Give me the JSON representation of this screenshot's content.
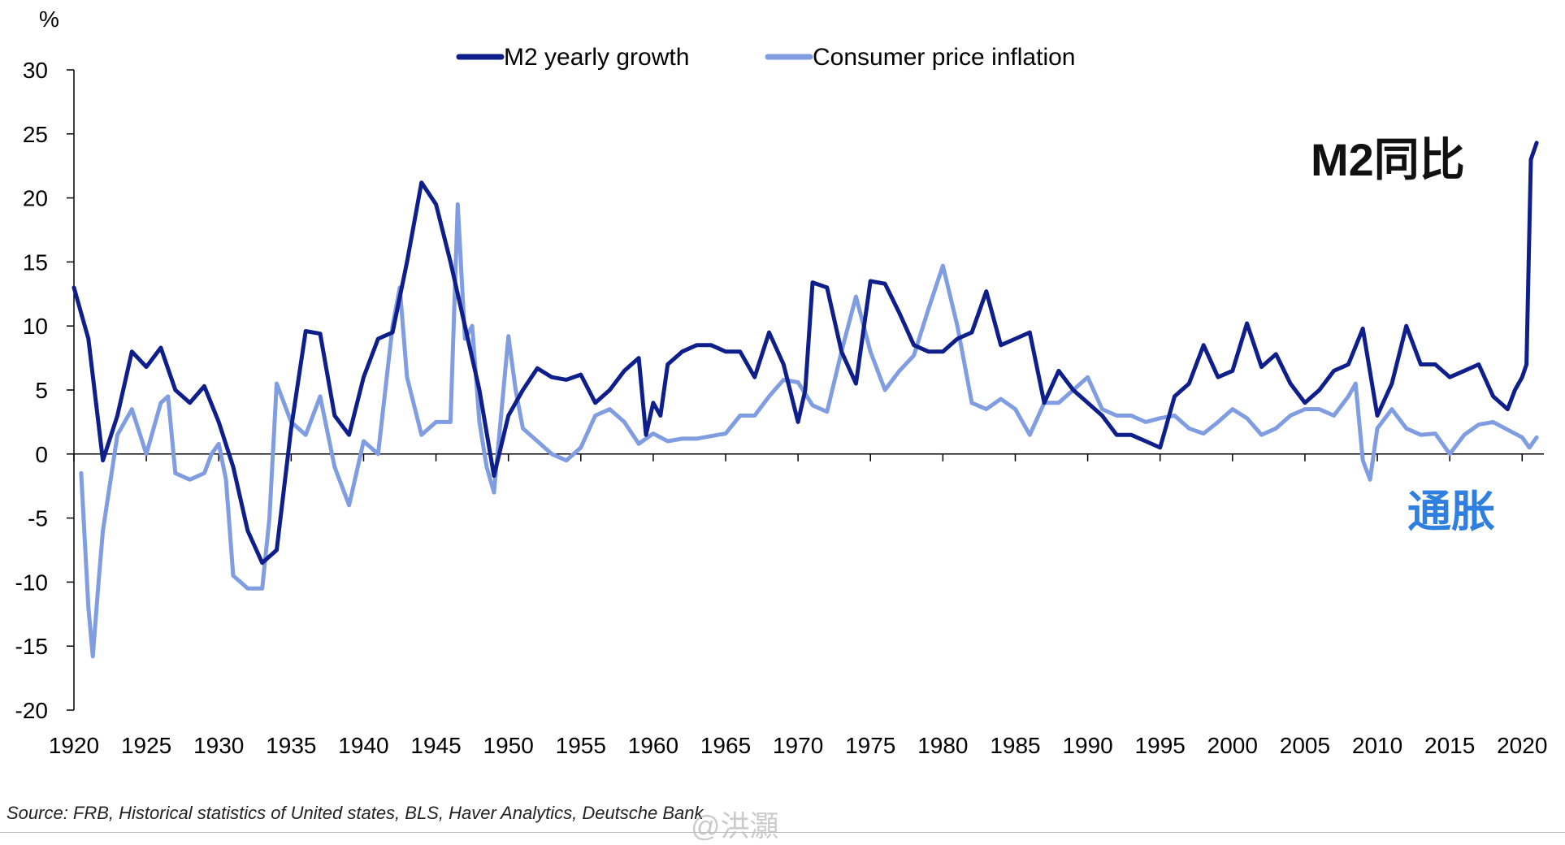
{
  "colors": {
    "m2": "#0e1f8c",
    "cpi": "#7f9de0",
    "m2_annotation": "#111111",
    "cpi_annotation": "#2f7fe0"
  },
  "annotations": {
    "m2": "M2同比",
    "cpi": "通胀"
  },
  "source": "Source: FRB, Historical statistics of United states,  BLS, Haver Analytics, Deutsche Bank",
  "watermark": "@洪灝",
  "chart_data": {
    "type": "line",
    "title": "",
    "ylabel": "%",
    "xlabel": "",
    "ylim": [
      -20,
      30
    ],
    "xlim": [
      1920,
      2021.5
    ],
    "yticks": [
      -20,
      -15,
      -10,
      -5,
      0,
      5,
      10,
      15,
      20,
      25,
      30
    ],
    "xticks": [
      1920,
      1925,
      1930,
      1935,
      1940,
      1945,
      1950,
      1955,
      1960,
      1965,
      1970,
      1975,
      1980,
      1985,
      1990,
      1995,
      2000,
      2005,
      2010,
      2015,
      2020
    ],
    "grid": false,
    "legend": "top-center",
    "series": [
      {
        "name": "M2 yearly growth",
        "x": [
          1920,
          1921,
          1922,
          1923,
          1924,
          1925,
          1926,
          1927,
          1928,
          1929,
          1930,
          1931,
          1932,
          1933,
          1934,
          1935,
          1936,
          1937,
          1938,
          1939,
          1940,
          1941,
          1942,
          1943,
          1944,
          1945,
          1946,
          1947,
          1948,
          1949,
          1950,
          1951,
          1952,
          1953,
          1954,
          1955,
          1956,
          1957,
          1958,
          1959,
          1959.5,
          1960,
          1960.5,
          1961,
          1962,
          1963,
          1964,
          1965,
          1966,
          1967,
          1968,
          1969,
          1970,
          1970.5,
          1971,
          1972,
          1973,
          1974,
          1975,
          1976,
          1977,
          1978,
          1979,
          1980,
          1981,
          1982,
          1983,
          1984,
          1985,
          1986,
          1987,
          1988,
          1989,
          1990,
          1991,
          1992,
          1993,
          1994,
          1995,
          1996,
          1997,
          1998,
          1999,
          2000,
          2001,
          2002,
          2003,
          2004,
          2005,
          2006,
          2007,
          2008,
          2009,
          2010,
          2011,
          2012,
          2013,
          2014,
          2015,
          2016,
          2017,
          2018,
          2019,
          2019.5,
          2020,
          2020.3,
          2020.6,
          2021
        ],
        "values": [
          13,
          9,
          -0.5,
          3,
          8,
          6.8,
          8.3,
          5,
          4,
          5.3,
          2.5,
          -1,
          -6,
          -8.5,
          -7.5,
          2,
          9.6,
          9.4,
          3,
          1.5,
          6,
          9,
          9.5,
          15,
          21.2,
          19.5,
          15,
          10,
          5,
          -1.7,
          3,
          5,
          6.7,
          6,
          5.8,
          6.2,
          4,
          5,
          6.5,
          7.5,
          1.5,
          4,
          3,
          7,
          8,
          8.5,
          8.5,
          8,
          8,
          6,
          9.5,
          7,
          2.5,
          5,
          13.4,
          13,
          8,
          5.5,
          13.5,
          13.3,
          11,
          8.5,
          8,
          8,
          9,
          9.5,
          12.7,
          8.5,
          9,
          9.5,
          4,
          6.5,
          5,
          4,
          3,
          1.5,
          1.5,
          1,
          0.5,
          4.5,
          5.5,
          8.5,
          6,
          6.5,
          10.2,
          6.8,
          7.8,
          5.5,
          4,
          5,
          6.5,
          7,
          9.8,
          3,
          5.5,
          10,
          7,
          7,
          6,
          6.5,
          7,
          4.5,
          3.5,
          5,
          6,
          7,
          23,
          24.3
        ]
      },
      {
        "name": "Consumer price inflation",
        "x": [
          1920.5,
          1921,
          1921.3,
          1921.7,
          1922,
          1923,
          1924,
          1925,
          1926,
          1926.5,
          1927,
          1928,
          1929,
          1929.5,
          1930,
          1930.5,
          1931,
          1932,
          1933,
          1933.5,
          1934,
          1935,
          1936,
          1937,
          1938,
          1939,
          1940,
          1941,
          1942,
          1942.5,
          1943,
          1944,
          1945,
          1946,
          1946.5,
          1947,
          1947.5,
          1948,
          1948.5,
          1949,
          1950,
          1950.5,
          1951,
          1952,
          1953,
          1954,
          1955,
          1956,
          1957,
          1958,
          1959,
          1960,
          1961,
          1962,
          1963,
          1964,
          1965,
          1966,
          1967,
          1968,
          1969,
          1970,
          1971,
          1972,
          1973,
          1974,
          1975,
          1976,
          1977,
          1978,
          1979,
          1980,
          1981,
          1982,
          1983,
          1984,
          1985,
          1986,
          1987,
          1988,
          1989,
          1990,
          1991,
          1992,
          1993,
          1994,
          1995,
          1996,
          1997,
          1998,
          1999,
          2000,
          2001,
          2002,
          2003,
          2004,
          2005,
          2006,
          2007,
          2008,
          2008.5,
          2009,
          2009.5,
          2010,
          2011,
          2012,
          2013,
          2014,
          2015,
          2016,
          2017,
          2018,
          2019,
          2020,
          2020.5,
          2021
        ],
        "values": [
          -1.5,
          -12,
          -15.8,
          -10,
          -6,
          1.5,
          3.5,
          0,
          4,
          4.5,
          -1.5,
          -2,
          -1.5,
          0,
          0.8,
          -2,
          -9.5,
          -10.5,
          -10.5,
          -5,
          5.5,
          2.5,
          1.5,
          4.5,
          -1,
          -4,
          1,
          0,
          10,
          13,
          6,
          1.5,
          2.5,
          2.5,
          19.5,
          9,
          10,
          2.5,
          -1,
          -3,
          9.2,
          5,
          2,
          1,
          0,
          -0.5,
          0.5,
          3,
          3.5,
          2.5,
          0.8,
          1.6,
          1,
          1.2,
          1.2,
          1.4,
          1.6,
          3,
          3,
          4.5,
          5.8,
          5.6,
          3.8,
          3.3,
          8,
          12.3,
          8,
          5,
          6.5,
          7.7,
          11.3,
          14.7,
          10,
          4,
          3.5,
          4.3,
          3.5,
          1.5,
          4,
          4,
          5,
          6,
          3.5,
          3,
          3,
          2.5,
          2.8,
          3,
          2,
          1.6,
          2.5,
          3.5,
          2.8,
          1.5,
          2,
          3,
          3.5,
          3.5,
          3,
          4.5,
          5.5,
          -0.5,
          -2,
          2,
          3.5,
          2,
          1.5,
          1.6,
          0,
          1.5,
          2.3,
          2.5,
          1.9,
          1.3,
          0.5,
          1.3
        ]
      }
    ]
  }
}
